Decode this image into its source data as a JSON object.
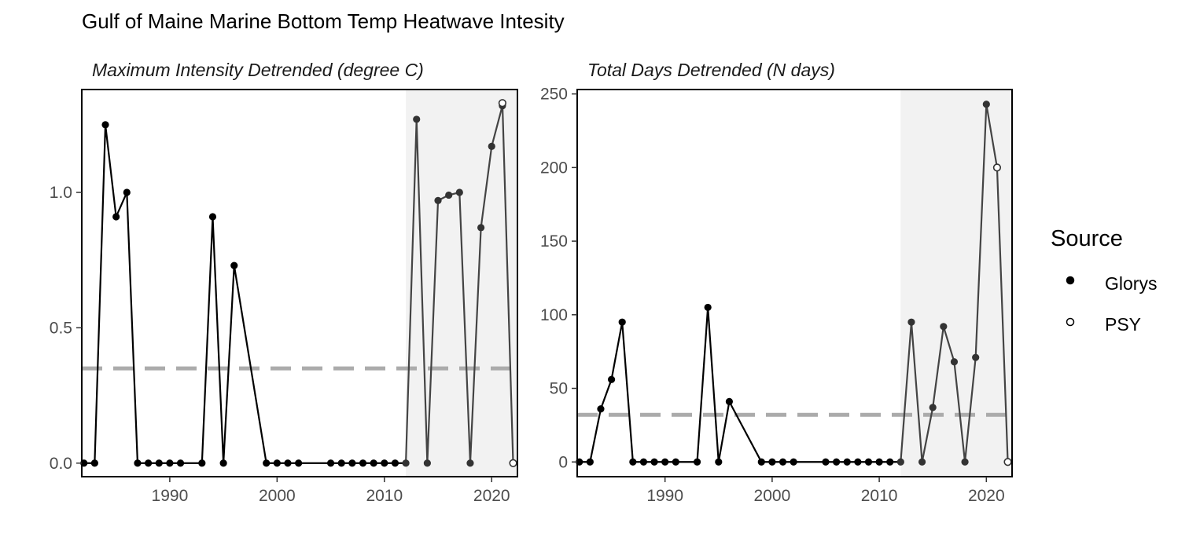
{
  "title": "Gulf of Maine Marine Bottom Temp Heatwave Intesity",
  "legend": {
    "title": "Source",
    "items": [
      {
        "label": "Glorys",
        "marker": "filled-circle"
      },
      {
        "label": "PSY",
        "marker": "open-circle"
      }
    ]
  },
  "chart_data": [
    {
      "type": "line",
      "title": "Maximum Intensity Detrended (degree C)",
      "xlabel": "",
      "ylabel": "",
      "xlim": [
        1981.8,
        2022.4
      ],
      "ylim": [
        -0.05,
        1.38
      ],
      "xticks": [
        1990,
        2000,
        2010,
        2020
      ],
      "yticks": [
        0.0,
        0.5,
        1.0
      ],
      "ytick_labels": [
        "0.0",
        "0.5",
        "1.0"
      ],
      "shaded_region": [
        2012,
        2022.4
      ],
      "reference_line": 0.35,
      "grid": false,
      "series": [
        {
          "name": "Glorys",
          "x": [
            1982,
            1983,
            1984,
            1985,
            1986,
            1987,
            1988,
            1989,
            1990,
            1991,
            1993,
            1994,
            1995,
            1996,
            1999,
            2000,
            2001,
            2002,
            2005,
            2006,
            2007,
            2008,
            2009,
            2010,
            2011,
            2012,
            2013,
            2014,
            2015,
            2016,
            2017,
            2018,
            2019,
            2020,
            2021
          ],
          "y": [
            0.0,
            0.0,
            1.25,
            0.91,
            1.0,
            0.0,
            0.0,
            0.0,
            0.0,
            0.0,
            0.0,
            0.91,
            0.0,
            0.73,
            0.0,
            0.0,
            0.0,
            0.0,
            0.0,
            0.0,
            0.0,
            0.0,
            0.0,
            0.0,
            0.0,
            0.0,
            1.27,
            0.0,
            0.97,
            0.99,
            1.0,
            0.0,
            0.87,
            1.17,
            1.32
          ]
        },
        {
          "name": "PSY",
          "x": [
            2021,
            2022
          ],
          "y": [
            1.33,
            0.0
          ]
        }
      ]
    },
    {
      "type": "line",
      "title": "Total Days Detrended (N days)",
      "xlabel": "",
      "ylabel": "",
      "xlim": [
        1981.8,
        2022.4
      ],
      "ylim": [
        -10,
        253
      ],
      "xticks": [
        1990,
        2000,
        2010,
        2020
      ],
      "yticks": [
        0,
        50,
        100,
        150,
        200,
        250
      ],
      "ytick_labels": [
        "0",
        "50",
        "100",
        "150",
        "200",
        "250"
      ],
      "shaded_region": [
        2012,
        2022.4
      ],
      "reference_line": 32,
      "grid": false,
      "series": [
        {
          "name": "Glorys",
          "x": [
            1982,
            1983,
            1984,
            1985,
            1986,
            1987,
            1988,
            1989,
            1990,
            1991,
            1993,
            1994,
            1995,
            1996,
            1999,
            2000,
            2001,
            2002,
            2005,
            2006,
            2007,
            2008,
            2009,
            2010,
            2011,
            2012,
            2013,
            2014,
            2015,
            2016,
            2017,
            2018,
            2019,
            2020
          ],
          "y": [
            0,
            0,
            36,
            56,
            95,
            0,
            0,
            0,
            0,
            0,
            0,
            105,
            0,
            41,
            0,
            0,
            0,
            0,
            0,
            0,
            0,
            0,
            0,
            0,
            0,
            0,
            95,
            0,
            37,
            92,
            68,
            0,
            71,
            243
          ]
        },
        {
          "name": "PSY",
          "x": [
            2020,
            2021,
            2022
          ],
          "y": [
            243,
            200,
            0
          ]
        }
      ]
    }
  ]
}
